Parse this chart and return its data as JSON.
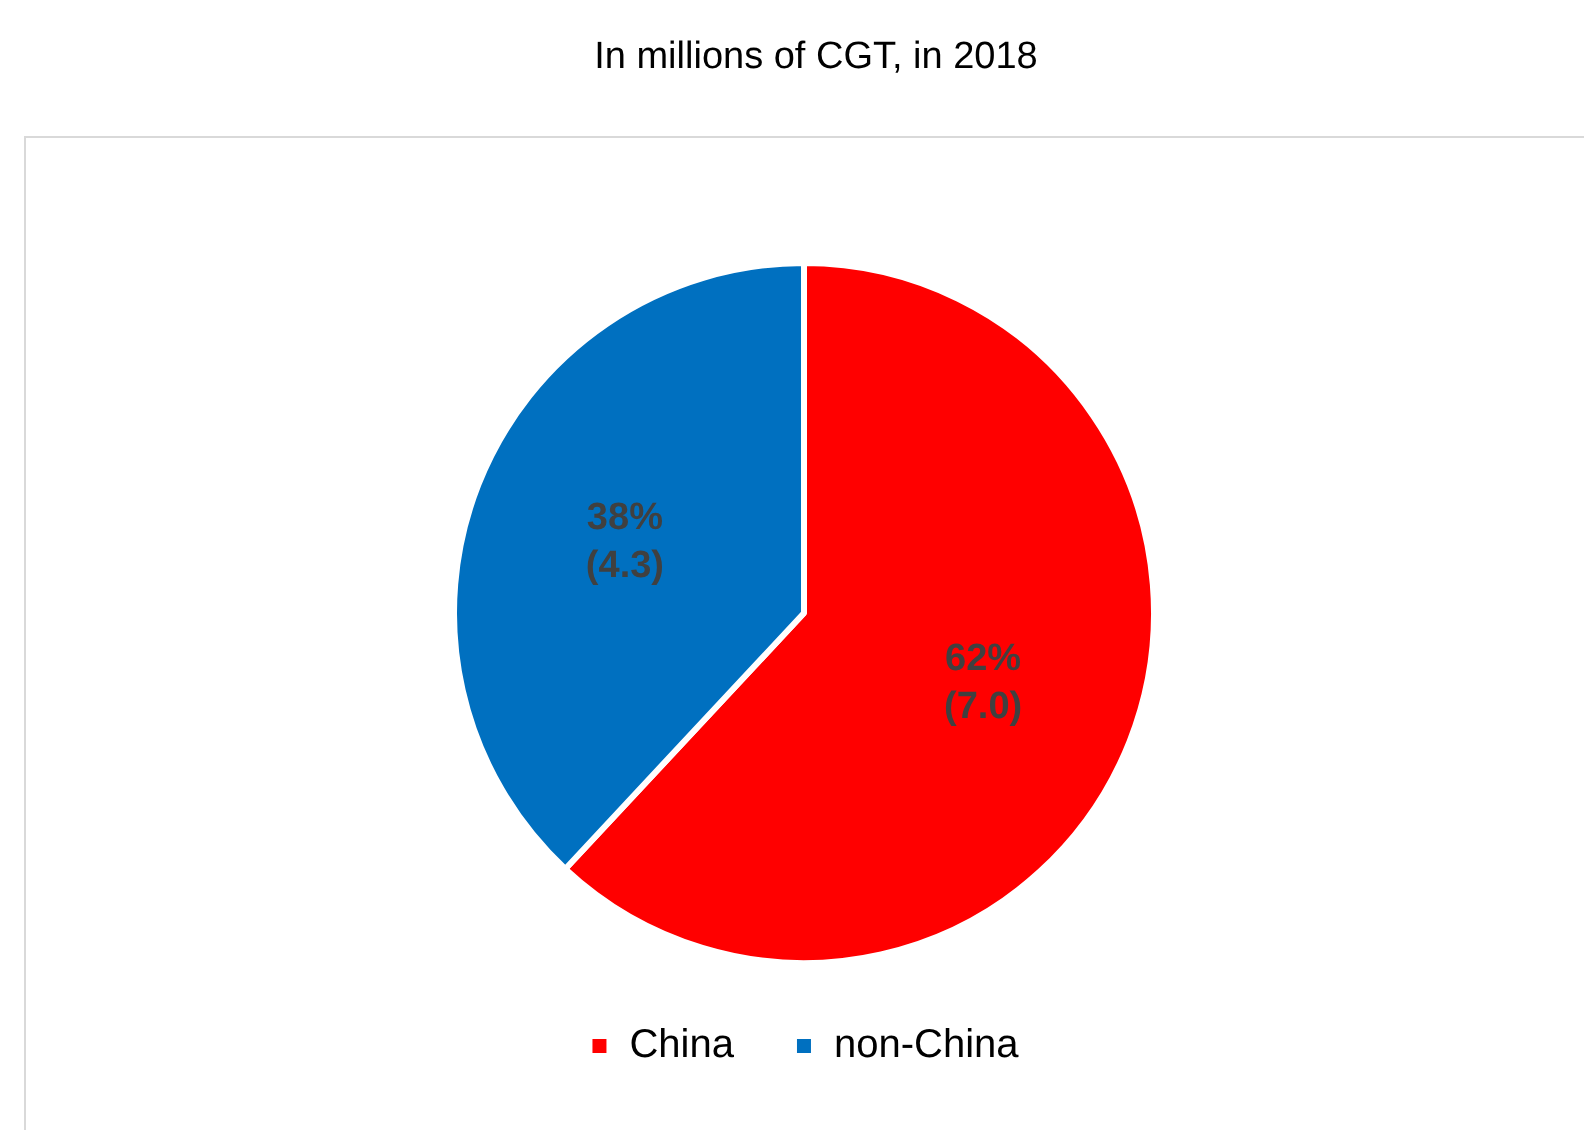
{
  "chart_data": {
    "type": "pie",
    "title": "In millions of CGT, in 2018",
    "categories": [
      "China",
      "non-China"
    ],
    "values": [
      7.0,
      4.3
    ],
    "colors": [
      "#ff0000",
      "#0070c0"
    ],
    "value_labels": [
      "62%\n(7.0)",
      "38%\n(4.3)"
    ],
    "legend": "bottom"
  }
}
